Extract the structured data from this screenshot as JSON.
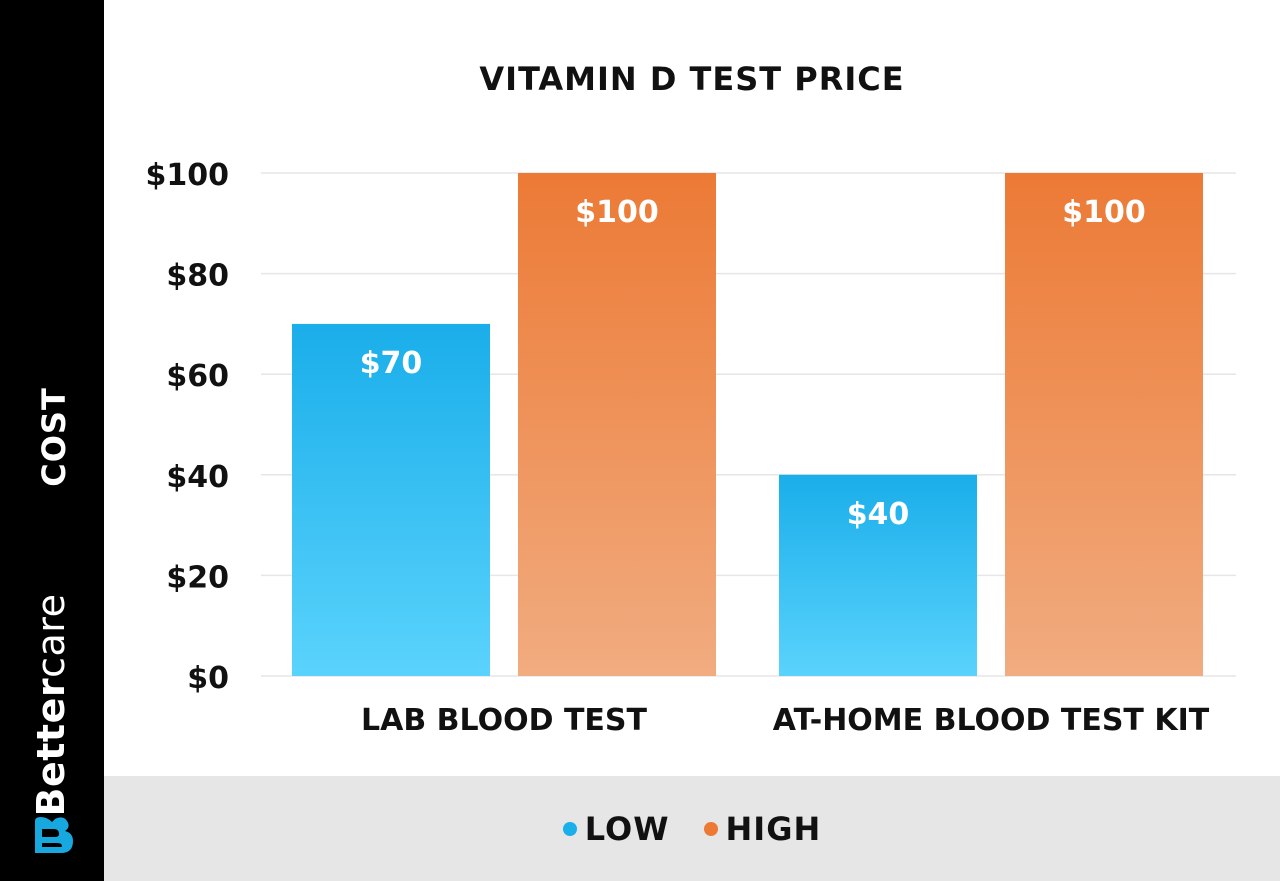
{
  "brand": {
    "name_bold": "Better",
    "name_light": "care",
    "accent_color": "#17a8e0"
  },
  "colors": {
    "low_top": "#1aaeea",
    "low_bottom": "#5ad3fc",
    "high_top": "#ec7a35",
    "high_bottom": "#f1ac80",
    "grid": "#e6e6e6"
  },
  "chart_data": {
    "type": "bar",
    "title": "VITAMIN D TEST PRICE",
    "ylabel": "COST",
    "xlabel": "",
    "categories": [
      "LAB BLOOD TEST",
      "AT-HOME BLOOD TEST KIT"
    ],
    "series": [
      {
        "name": "LOW",
        "values": [
          70,
          40
        ],
        "labels": [
          "$70",
          "$40"
        ]
      },
      {
        "name": "HIGH",
        "values": [
          100,
          100
        ],
        "labels": [
          "$100",
          "$100"
        ]
      }
    ],
    "ylim": [
      0,
      100
    ],
    "yticks": [
      0,
      20,
      40,
      60,
      80,
      100
    ],
    "ytick_labels": [
      "$0",
      "$20",
      "$40",
      "$60",
      "$80",
      "$100"
    ],
    "grid": true,
    "legend_position": "bottom-center"
  }
}
